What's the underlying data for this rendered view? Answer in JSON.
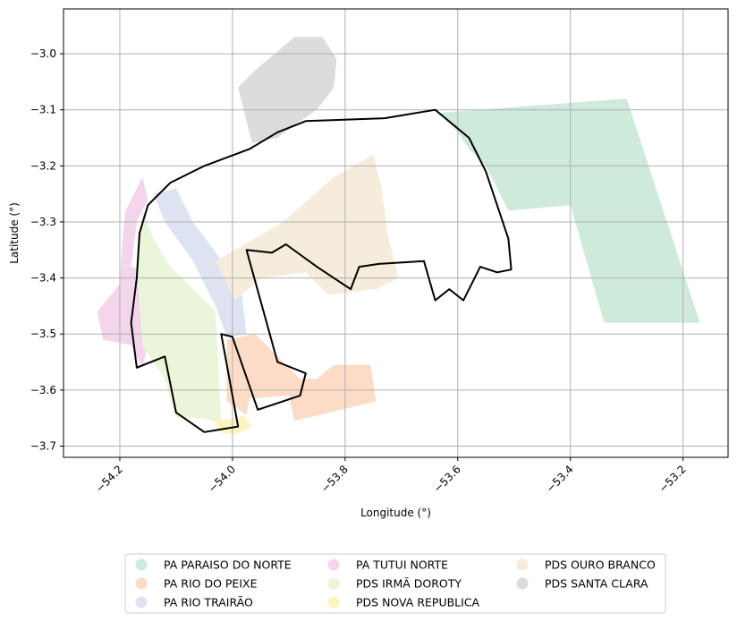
{
  "chart_data": {
    "type": "map",
    "xlabel": "Longitude (°)",
    "ylabel": "Latitude (°)",
    "xlim": [
      -54.3,
      -53.12
    ],
    "ylim": [
      -3.72,
      -2.92
    ],
    "grid": true,
    "legend_placement": "bottom-center",
    "x_ticks": [
      -54.2,
      -54.0,
      -53.8,
      -53.6,
      -53.4,
      -53.2
    ],
    "x_tick_labels": [
      "−54.2",
      "−54.0",
      "−53.8",
      "−53.6",
      "−53.4",
      "−53.2"
    ],
    "y_ticks": [
      -3.0,
      -3.1,
      -3.2,
      -3.3,
      -3.4,
      -3.5,
      -3.6,
      -3.7
    ],
    "y_tick_labels": [
      "−3.0",
      "−3.1",
      "−3.2",
      "−3.3",
      "−3.4",
      "−3.5",
      "−3.6",
      "−3.7"
    ],
    "areas": [
      {
        "name": "PA PARAISO DO NORTE",
        "color": "#cdeadb",
        "polygon": [
          [
            -53.63,
            -3.105
          ],
          [
            -53.3,
            -3.08
          ],
          [
            -53.17,
            -3.48
          ],
          [
            -53.34,
            -3.48
          ],
          [
            -53.4,
            -3.27
          ],
          [
            -53.51,
            -3.28
          ],
          [
            -53.55,
            -3.2
          ],
          [
            -53.58,
            -3.17
          ],
          [
            -53.6,
            -3.14
          ],
          [
            -53.62,
            -3.12
          ]
        ]
      },
      {
        "name": "PA RIO DO PEIXE",
        "color": "#fcdcc6",
        "polygon": [
          [
            -54.01,
            -3.51
          ],
          [
            -53.96,
            -3.5
          ],
          [
            -53.88,
            -3.58
          ],
          [
            -53.85,
            -3.58
          ],
          [
            -53.82,
            -3.555
          ],
          [
            -53.755,
            -3.555
          ],
          [
            -53.745,
            -3.62
          ],
          [
            -53.89,
            -3.655
          ],
          [
            -53.9,
            -3.61
          ],
          [
            -53.97,
            -3.615
          ],
          [
            -53.975,
            -3.645
          ],
          [
            -54.01,
            -3.62
          ]
        ]
      },
      {
        "name": "PA RIO TRAIRÃO",
        "color": "#dde3f1",
        "polygon": [
          [
            -54.14,
            -3.25
          ],
          [
            -54.1,
            -3.24
          ],
          [
            -54.07,
            -3.3
          ],
          [
            -53.985,
            -3.415
          ],
          [
            -53.975,
            -3.5
          ],
          [
            -54.01,
            -3.505
          ],
          [
            -54.03,
            -3.45
          ],
          [
            -54.07,
            -3.37
          ],
          [
            -54.12,
            -3.3
          ]
        ]
      },
      {
        "name": "PA TUTUI NORTE",
        "color": "#f3d6eb",
        "polygon": [
          [
            -54.16,
            -3.22
          ],
          [
            -54.15,
            -3.26
          ],
          [
            -54.17,
            -3.3
          ],
          [
            -54.18,
            -3.38
          ],
          [
            -54.14,
            -3.39
          ],
          [
            -54.09,
            -3.43
          ],
          [
            -54.12,
            -3.46
          ],
          [
            -54.15,
            -3.52
          ],
          [
            -54.16,
            -3.56
          ],
          [
            -54.18,
            -3.52
          ],
          [
            -54.23,
            -3.51
          ],
          [
            -54.24,
            -3.46
          ],
          [
            -54.2,
            -3.41
          ],
          [
            -54.195,
            -3.33
          ],
          [
            -54.19,
            -3.28
          ]
        ]
      },
      {
        "name": "PDS IRMÃ DOROTY",
        "color": "#eaf5d9",
        "polygon": [
          [
            -54.16,
            -3.28
          ],
          [
            -54.14,
            -3.33
          ],
          [
            -54.11,
            -3.38
          ],
          [
            -54.06,
            -3.43
          ],
          [
            -54.03,
            -3.46
          ],
          [
            -54.02,
            -3.66
          ],
          [
            -54.05,
            -3.65
          ],
          [
            -54.1,
            -3.65
          ],
          [
            -54.12,
            -3.58
          ],
          [
            -54.16,
            -3.52
          ],
          [
            -54.17,
            -3.38
          ]
        ]
      },
      {
        "name": "PDS NOVA REPUBLICA",
        "color": "#fef4c0",
        "polygon": [
          [
            -54.03,
            -3.655
          ],
          [
            -53.995,
            -3.65
          ],
          [
            -53.98,
            -3.645
          ],
          [
            -53.965,
            -3.665
          ],
          [
            -53.995,
            -3.68
          ],
          [
            -54.025,
            -3.675
          ]
        ]
      },
      {
        "name": "PDS OURO BRANCO",
        "color": "#f6ecdc",
        "polygon": [
          [
            -54.03,
            -3.37
          ],
          [
            -53.91,
            -3.3
          ],
          [
            -53.82,
            -3.22
          ],
          [
            -53.75,
            -3.18
          ],
          [
            -53.735,
            -3.24
          ],
          [
            -53.725,
            -3.32
          ],
          [
            -53.705,
            -3.4
          ],
          [
            -53.745,
            -3.42
          ],
          [
            -53.83,
            -3.43
          ],
          [
            -53.87,
            -3.39
          ],
          [
            -53.95,
            -3.4
          ],
          [
            -53.995,
            -3.44
          ]
        ]
      },
      {
        "name": "PDS SANTA CLARA",
        "color": "#dcdcdc",
        "polygon": [
          [
            -53.96,
            -3.03
          ],
          [
            -53.89,
            -2.97
          ],
          [
            -53.84,
            -2.97
          ],
          [
            -53.815,
            -3.01
          ],
          [
            -53.82,
            -3.06
          ],
          [
            -53.85,
            -3.1
          ],
          [
            -53.88,
            -3.12
          ],
          [
            -53.92,
            -3.15
          ],
          [
            -53.965,
            -3.16
          ],
          [
            -53.99,
            -3.06
          ]
        ]
      }
    ],
    "boundary": [
      [
        -54.18,
        -3.48
      ],
      [
        -54.17,
        -3.4
      ],
      [
        -54.165,
        -3.32
      ],
      [
        -54.15,
        -3.27
      ],
      [
        -54.11,
        -3.23
      ],
      [
        -54.05,
        -3.2
      ],
      [
        -53.97,
        -3.17
      ],
      [
        -53.92,
        -3.14
      ],
      [
        -53.87,
        -3.12
      ],
      [
        -53.73,
        -3.115
      ],
      [
        -53.64,
        -3.1
      ],
      [
        -53.58,
        -3.15
      ],
      [
        -53.55,
        -3.21
      ],
      [
        -53.53,
        -3.27
      ],
      [
        -53.51,
        -3.33
      ],
      [
        -53.505,
        -3.385
      ],
      [
        -53.53,
        -3.39
      ],
      [
        -53.56,
        -3.38
      ],
      [
        -53.575,
        -3.41
      ],
      [
        -53.59,
        -3.44
      ],
      [
        -53.615,
        -3.42
      ],
      [
        -53.64,
        -3.44
      ],
      [
        -53.66,
        -3.37
      ],
      [
        -53.74,
        -3.375
      ],
      [
        -53.775,
        -3.38
      ],
      [
        -53.79,
        -3.42
      ],
      [
        -53.85,
        -3.38
      ],
      [
        -53.905,
        -3.34
      ],
      [
        -53.93,
        -3.355
      ],
      [
        -53.975,
        -3.35
      ],
      [
        -53.92,
        -3.55
      ],
      [
        -53.87,
        -3.57
      ],
      [
        -53.88,
        -3.61
      ],
      [
        -53.955,
        -3.635
      ],
      [
        -54.0,
        -3.505
      ],
      [
        -54.02,
        -3.5
      ],
      [
        -53.99,
        -3.665
      ],
      [
        -54.05,
        -3.675
      ],
      [
        -54.1,
        -3.64
      ],
      [
        -54.12,
        -3.54
      ],
      [
        -54.17,
        -3.56
      ]
    ]
  },
  "legend": {
    "items": [
      {
        "label": "PA PARAISO DO NORTE",
        "color": "#cdeadb"
      },
      {
        "label": "PA RIO DO PEIXE",
        "color": "#fcdcc6"
      },
      {
        "label": "PA RIO TRAIRÃO",
        "color": "#dde3f1"
      },
      {
        "label": "PA TUTUI NORTE",
        "color": "#f3d6eb"
      },
      {
        "label": "PDS IRMÃ DOROTY",
        "color": "#eaf5d9"
      },
      {
        "label": "PDS NOVA REPUBLICA",
        "color": "#fef4c0"
      },
      {
        "label": "PDS OURO BRANCO",
        "color": "#f6ecdc"
      },
      {
        "label": "PDS SANTA CLARA",
        "color": "#dcdcdc"
      }
    ]
  }
}
